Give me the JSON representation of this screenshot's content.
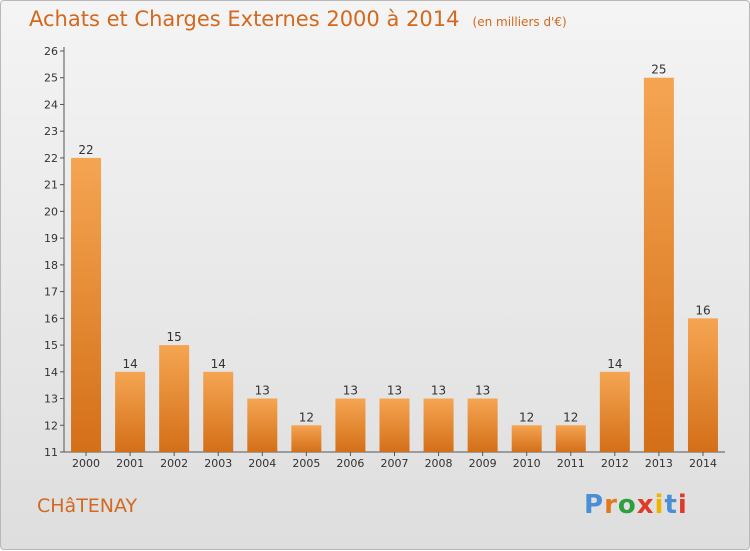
{
  "header": {
    "title": "Achats et Charges Externes 2000 à 2014",
    "subtitle": "(en milliers d'€)"
  },
  "footer": {
    "city": "CHâTENAY",
    "logo": "Proxiti",
    "logo_colors": [
      "#4a8fd6",
      "#e07a1f",
      "#2e9e3e",
      "#e03a2a",
      "#f0b400",
      "#4a8fd6",
      "#e03a2a"
    ]
  },
  "colors": {
    "accent": "#d2691e",
    "bar_light": "#f5a24f",
    "bar_dark": "#d9711a"
  },
  "chart_data": {
    "type": "bar",
    "categories": [
      "2000",
      "2001",
      "2002",
      "2003",
      "2004",
      "2005",
      "2006",
      "2007",
      "2008",
      "2009",
      "2010",
      "2011",
      "2012",
      "2013",
      "2014"
    ],
    "values": [
      22,
      14,
      15,
      14,
      13,
      12,
      13,
      13,
      13,
      13,
      12,
      12,
      14,
      25,
      16
    ],
    "ylim": [
      11,
      26
    ],
    "yticks": [
      11,
      12,
      13,
      14,
      15,
      16,
      17,
      18,
      19,
      20,
      21,
      22,
      23,
      24,
      25,
      26
    ],
    "title": "Achats et Charges Externes 2000 à 2014",
    "xlabel": "",
    "ylabel": "",
    "grid": false,
    "data_labels": true
  }
}
